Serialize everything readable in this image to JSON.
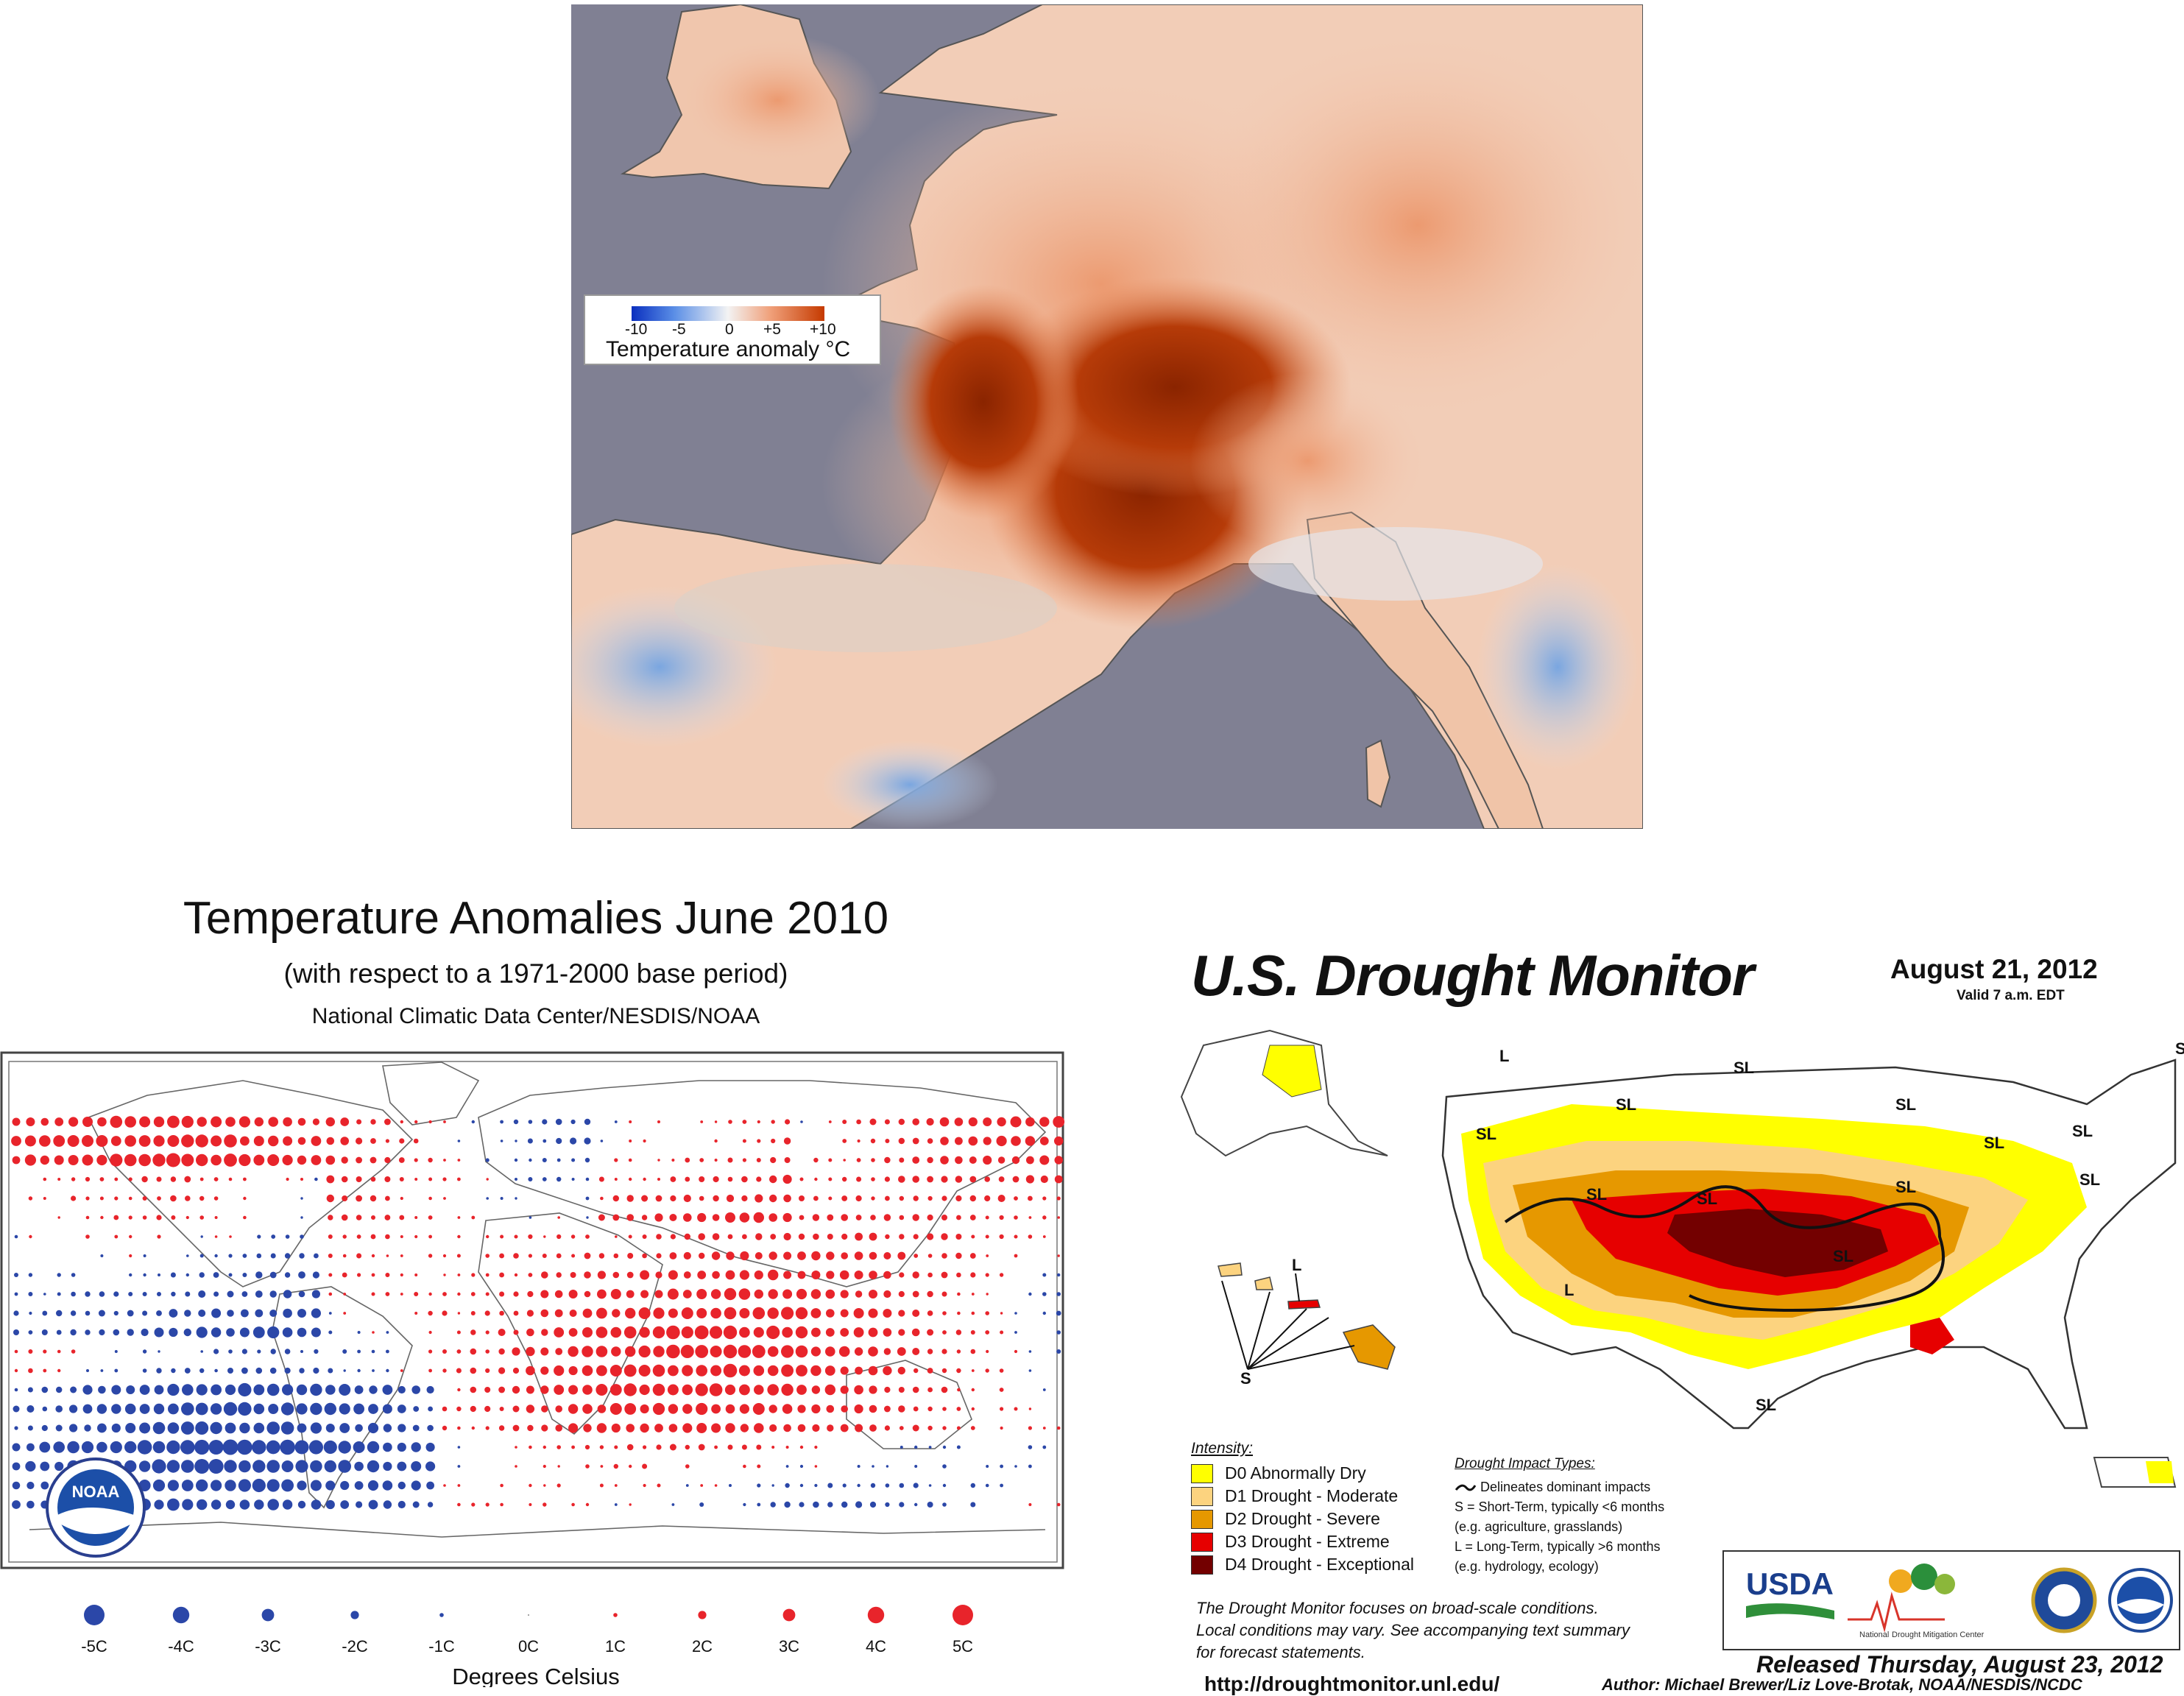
{
  "europe_panel": {
    "legend": {
      "ticks": [
        "-10",
        "-5",
        "0",
        "+5",
        "+10"
      ],
      "title": "Temperature anomaly °C"
    },
    "colors": {
      "sea": "#808093",
      "cold": "#0a2fbf",
      "neutral": "#f3f3f3",
      "warm": "#f0a07a",
      "hot": "#a52e00"
    }
  },
  "noaa_panel": {
    "title": "Temperature Anomalies June 2010",
    "subtitle": "(with respect to a 1971-2000 base period)",
    "source": "National Climatic Data Center/NESDIS/NOAA",
    "logo_text": "NOAA",
    "scale_title": "Degrees Celsius",
    "scale_labels": [
      "-5C",
      "-4C",
      "-3C",
      "-2C",
      "-1C",
      "0C",
      "1C",
      "2C",
      "3C",
      "4C",
      "5C"
    ],
    "scale_values": [
      -5,
      -4,
      -3,
      -2,
      -1,
      0,
      1,
      2,
      3,
      4,
      5
    ],
    "colors": {
      "positive": "#e8242b",
      "negative": "#2b47a8"
    }
  },
  "drought_panel": {
    "title": "U.S. Drought Monitor",
    "date": "August 21, 2012",
    "valid": "Valid 7 a.m. EDT",
    "intensity_title": "Intensity:",
    "intensity": [
      {
        "label": "D0 Abnormally Dry",
        "color": "#ffff00"
      },
      {
        "label": "D1 Drought - Moderate",
        "color": "#fcd37f"
      },
      {
        "label": "D2 Drought - Severe",
        "color": "#e69800"
      },
      {
        "label": "D3 Drought - Extreme",
        "color": "#e60000"
      },
      {
        "label": "D4 Drought - Exceptional",
        "color": "#730000"
      }
    ],
    "impact_title": "Drought Impact Types:",
    "impact_lines": [
      "Delineates dominant impacts",
      "S = Short-Term, typically <6 months",
      "(e.g. agriculture, grasslands)",
      "L = Long-Term, typically >6 months",
      "(e.g. hydrology, ecology)"
    ],
    "map_labels": [
      "L",
      "SL",
      "SL",
      "SL",
      "SL",
      "SL",
      "SL",
      "SL",
      "SL",
      "SL",
      "SL",
      "SL",
      "SL",
      "L",
      "S",
      "L",
      "S"
    ],
    "note_lines": [
      "The Drought Monitor focuses on broad-scale conditions.",
      "Local conditions may vary. See accompanying text summary",
      "for forecast statements."
    ],
    "logos": {
      "usda": "USDA",
      "ndmc_line1": "National",
      "ndmc_line2": "Drought Mitigation Center"
    },
    "released": "Released Thursday, August 23, 2012",
    "url": "http://droughtmonitor.unl.edu/",
    "author": "Author: Michael Brewer/Liz Love-Brotak, NOAA/NESDIS/NCDC"
  }
}
